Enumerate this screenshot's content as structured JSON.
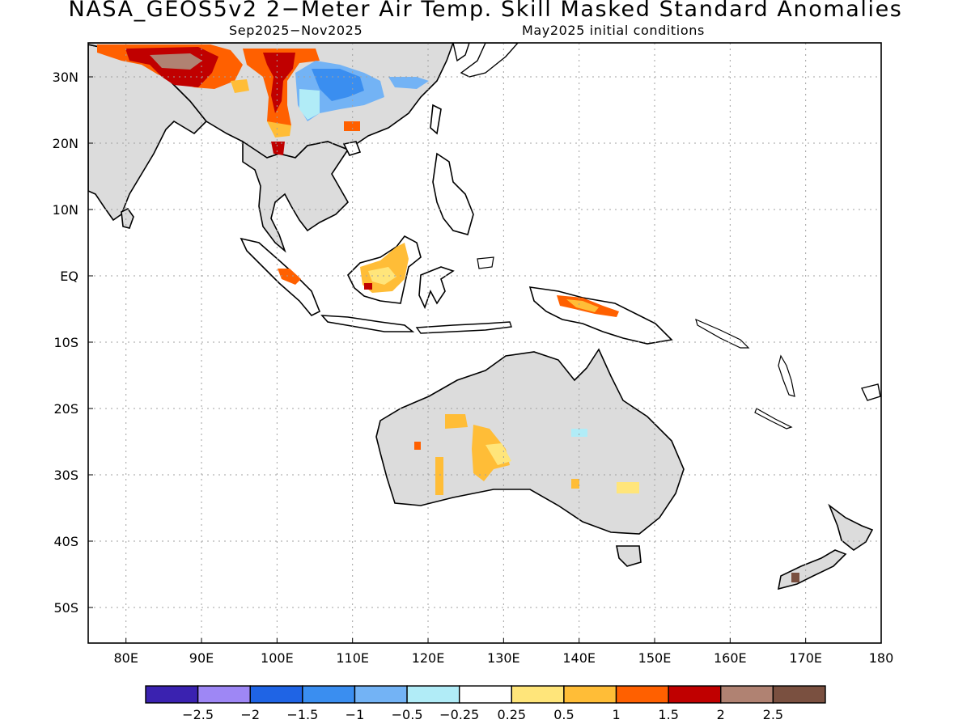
{
  "title": "NASA_GEOS5v2 2−Meter Air Temp. Skill Masked Standard Anomalies",
  "subtitle_left": "Sep2025−Nov2025",
  "subtitle_right": "May2025 initial conditions",
  "lat_labels": [
    "30N",
    "20N",
    "10N",
    "EQ",
    "10S",
    "20S",
    "30S",
    "40S",
    "50S"
  ],
  "lon_labels": [
    "80E",
    "90E",
    "100E",
    "110E",
    "120E",
    "130E",
    "140E",
    "150E",
    "160E",
    "170E",
    "180"
  ],
  "colorbar": {
    "colors": [
      "#3a22b0",
      "#9e87f5",
      "#1f64e5",
      "#3a8ef0",
      "#73b3f5",
      "#b1ecf7",
      "#ffffff",
      "#ffe57a",
      "#ffbd37",
      "#ff6000",
      "#c00000",
      "#b08272",
      "#7a5040"
    ],
    "tick_labels": [
      "−2.5",
      "−2",
      "−1.5",
      "−1",
      "−0.5",
      "−0.25",
      "0.25",
      "0.5",
      "1",
      "1.5",
      "2",
      "2.5"
    ]
  },
  "colors": {
    "masked_land": "#dcdcdc",
    "coast": "#000000",
    "grid": "#a0a0a0"
  }
}
